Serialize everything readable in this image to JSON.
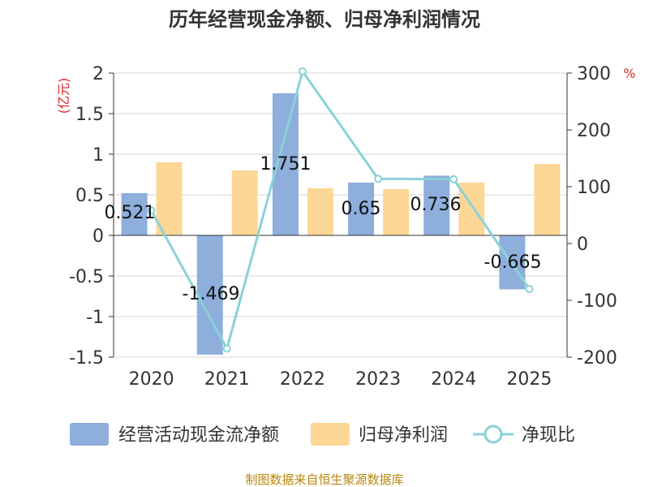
{
  "chart_data": {
    "type": "bar",
    "title": "历年经营现金净额、归母净利润情况",
    "categories": [
      "2020",
      "2021",
      "2022",
      "2023",
      "2024",
      "2025"
    ],
    "series": [
      {
        "name": "经营活动现金流净额",
        "type": "bar",
        "axis": "left",
        "color": "#8eaedc",
        "values": [
          0.521,
          -1.469,
          1.751,
          0.65,
          0.736,
          -0.665
        ],
        "labels": [
          "0.521",
          "-1.469",
          "1.751",
          "0.65",
          "0.736",
          "-0.665"
        ]
      },
      {
        "name": "归母净利润",
        "type": "bar",
        "axis": "left",
        "color": "#fdd795",
        "values": [
          0.9,
          0.8,
          0.58,
          0.57,
          0.65,
          0.88
        ]
      },
      {
        "name": "净现比",
        "type": "line",
        "axis": "right",
        "color": "#8ad2d8",
        "values": [
          58,
          -185,
          303,
          114,
          113,
          -80
        ]
      }
    ],
    "left_axis": {
      "unit": "(亿元)",
      "ylim": [
        -1.5,
        2
      ],
      "ticks": [
        "2",
        "1.5",
        "1",
        "0.5",
        "0",
        "-0.5",
        "-1",
        "-1.5"
      ]
    },
    "right_axis": {
      "unit": "%",
      "ylim": [
        -200,
        300
      ],
      "ticks": [
        "300",
        "200",
        "100",
        "0",
        "-100",
        "-200"
      ]
    },
    "legend": [
      "经营活动现金流净额",
      "归母净利润",
      "净现比"
    ],
    "source": "制图数据来自恒生聚源数据库"
  }
}
